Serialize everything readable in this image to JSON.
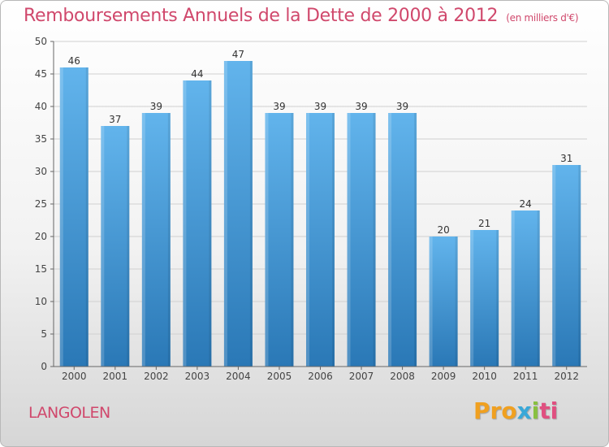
{
  "title": "Remboursements Annuels de la Dette de 2000 à 2012",
  "unit": "(en milliers d'€)",
  "town": "LANGOLEN",
  "logo": {
    "text": "Proxiti",
    "parts": [
      "Pro",
      "x",
      "i",
      "ti"
    ]
  },
  "colors": {
    "bar": "#5aaee8",
    "bar_dark": "#2a7ab8",
    "title": "#d0486c",
    "axis": "#555555",
    "grid": "#cccccc"
  },
  "chart_data": {
    "type": "bar",
    "categories": [
      "2000",
      "2001",
      "2002",
      "2003",
      "2004",
      "2005",
      "2006",
      "2007",
      "2008",
      "2009",
      "2010",
      "2011",
      "2012"
    ],
    "values": [
      46,
      37,
      39,
      44,
      47,
      39,
      39,
      39,
      39,
      20,
      21,
      24,
      31
    ],
    "ylim": [
      0,
      50
    ],
    "yticks": [
      0,
      5,
      10,
      15,
      20,
      25,
      30,
      35,
      40,
      45,
      50
    ],
    "grid": true,
    "data_labels": true
  }
}
